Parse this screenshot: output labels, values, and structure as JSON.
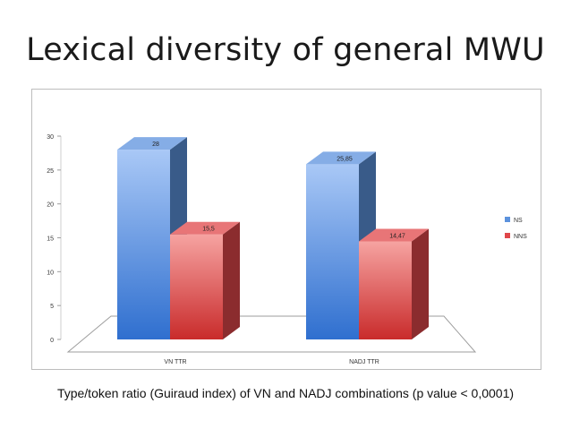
{
  "slide": {
    "title": "Lexical diversity of general MWU",
    "caption": "Type/token ratio (Guiraud index) of VN and NADJ combinations (p value < 0,0001)"
  },
  "chart_data": {
    "type": "bar",
    "title": "",
    "xlabel": "",
    "ylabel": "",
    "categories": [
      "VN TTR",
      "NADJ TTR"
    ],
    "series": [
      {
        "name": "NS",
        "values": [
          28,
          25.85
        ],
        "labels": [
          "28",
          "25,85"
        ],
        "color": "#5c92dd"
      },
      {
        "name": "NNS",
        "values": [
          15.5,
          14.47
        ],
        "labels": [
          "15,5",
          "14,47"
        ],
        "color": "#e0474a"
      }
    ],
    "ylim": [
      0,
      30
    ],
    "yticks": [
      0,
      5,
      10,
      15,
      20,
      25,
      30
    ],
    "style": "3d-clustered",
    "grid": false,
    "legend": "right"
  }
}
